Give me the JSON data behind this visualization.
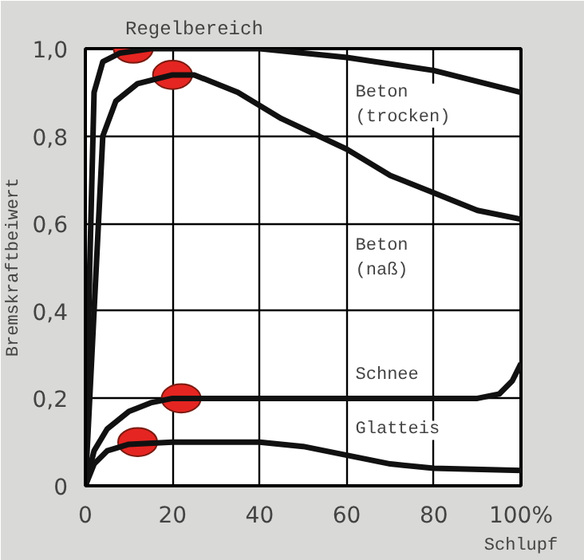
{
  "chart_data": {
    "type": "line",
    "title": "Regelbereich",
    "xlabel": "Schlupf",
    "ylabel": "Bremskraftbeiwert",
    "xlim": [
      0,
      100
    ],
    "ylim": [
      0,
      1.0
    ],
    "xticks": [
      0,
      20,
      40,
      60,
      80,
      {
        "value": 100,
        "label": "100%"
      }
    ],
    "yticks": [
      0,
      {
        "value": 0.2,
        "label": "0,2"
      },
      {
        "value": 0.4,
        "label": "0,4"
      },
      {
        "value": 0.6,
        "label": "0,6"
      },
      {
        "value": 0.8,
        "label": "0,8"
      },
      {
        "value": 1.0,
        "label": "1,0"
      }
    ],
    "grid": true,
    "line_style": "solid",
    "series": [
      {
        "name": "Beton\n(trocken)",
        "color": "#111111",
        "x": [
          0,
          1,
          2,
          4,
          8,
          15,
          40,
          60,
          80,
          100
        ],
        "values": [
          0,
          0.5,
          0.9,
          0.97,
          0.99,
          1.0,
          1.0,
          0.98,
          0.95,
          0.9
        ]
      },
      {
        "name": "Beton\n(naß)",
        "color": "#111111",
        "x": [
          0,
          2,
          4,
          7,
          12,
          20,
          25,
          35,
          45,
          60,
          70,
          80,
          90,
          100
        ],
        "values": [
          0,
          0.4,
          0.8,
          0.88,
          0.92,
          0.94,
          0.94,
          0.9,
          0.84,
          0.77,
          0.71,
          0.67,
          0.63,
          0.61
        ]
      },
      {
        "name": "Schnee",
        "color": "#111111",
        "x": [
          0,
          2,
          5,
          10,
          15,
          20,
          40,
          60,
          90,
          95,
          98,
          100
        ],
        "values": [
          0,
          0.08,
          0.13,
          0.17,
          0.19,
          0.2,
          0.2,
          0.2,
          0.2,
          0.21,
          0.24,
          0.28
        ]
      },
      {
        "name": "Glatteis",
        "color": "#111111",
        "x": [
          0,
          2,
          5,
          10,
          20,
          40,
          50,
          60,
          70,
          80,
          100
        ],
        "values": [
          0,
          0.05,
          0.08,
          0.095,
          0.1,
          0.1,
          0.09,
          0.07,
          0.05,
          0.04,
          0.035
        ]
      },
      {
        "type": "scatter",
        "color": "#e52521",
        "x": [
          11,
          20,
          22,
          12
        ],
        "values": [
          1.0,
          0.94,
          0.2,
          0.1
        ]
      }
    ]
  }
}
